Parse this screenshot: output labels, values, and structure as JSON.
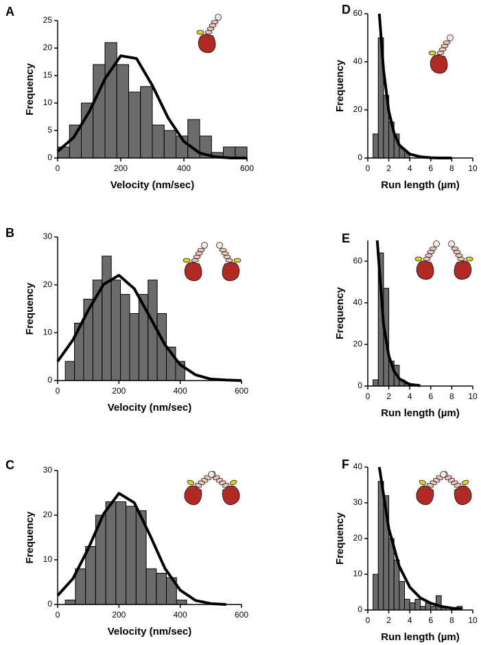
{
  "chart_data": [
    {
      "type": "histogram",
      "panel_label": "A",
      "xlabel": "Velocity (nm/sec)",
      "ylabel": "Frequency",
      "bins": [
        0,
        37.5,
        75,
        112.5,
        150,
        187.5,
        225,
        262.5,
        300,
        337.5,
        375,
        412.5,
        450,
        487.5,
        525,
        562.5,
        600
      ],
      "values": [
        2,
        6,
        10,
        17,
        21,
        17,
        12,
        13,
        6,
        5,
        4,
        7,
        4,
        1,
        2,
        2
      ],
      "fit": {
        "x": [
          0,
          50,
          100,
          150,
          200,
          250,
          300,
          350,
          400,
          450,
          500,
          550,
          600
        ],
        "values": [
          1.2,
          3.7,
          8.4,
          14.4,
          18.6,
          18.1,
          13.2,
          7.3,
          3.0,
          0.9,
          0.2,
          0.0,
          0.0
        ]
      },
      "xlim": [
        0,
        600
      ],
      "ylim": [
        0,
        25
      ],
      "xticks": [
        0,
        200,
        400,
        600
      ],
      "yticks": [
        0,
        5,
        10,
        15,
        20,
        25
      ],
      "color": "#6b6b6b",
      "fit_color": "#000000"
    },
    {
      "type": "histogram",
      "panel_label": "B",
      "xlabel": "Velocity (nm/sec)",
      "ylabel": "Frequency",
      "bins": [
        25,
        55,
        85,
        115,
        145,
        175,
        205,
        235,
        265,
        295,
        325,
        355,
        385,
        415
      ],
      "values": [
        4,
        12,
        17,
        21,
        26,
        21,
        18,
        14,
        18,
        21,
        14,
        7,
        4
      ],
      "fit": {
        "x": [
          0,
          50,
          100,
          150,
          200,
          250,
          300,
          350,
          400,
          450,
          500,
          550,
          600
        ],
        "values": [
          4.0,
          8.5,
          14.7,
          20.1,
          22.0,
          19.2,
          13.4,
          7.5,
          3.3,
          1.2,
          0.3,
          0.1,
          0.0
        ]
      },
      "xlim": [
        0,
        600
      ],
      "ylim": [
        0,
        30
      ],
      "xticks": [
        0,
        200,
        400,
        600
      ],
      "yticks": [
        0,
        10,
        20,
        30
      ],
      "color": "#6b6b6b",
      "fit_color": "#000000"
    },
    {
      "type": "histogram",
      "panel_label": "C",
      "xlabel": "Velocity (nm/sec)",
      "ylabel": "Frequency",
      "bins": [
        25,
        58,
        91,
        124,
        157,
        190,
        223,
        256,
        289,
        322,
        355,
        388,
        421
      ],
      "values": [
        1,
        8,
        13,
        20,
        23,
        23,
        22,
        21,
        8,
        7,
        6,
        1
      ],
      "fit": {
        "x": [
          0,
          50,
          100,
          150,
          200,
          250,
          300,
          350,
          400,
          450,
          500,
          550
        ],
        "values": [
          2.0,
          5.8,
          12.5,
          20.3,
          24.9,
          22.8,
          15.7,
          8.1,
          3.2,
          0.9,
          0.2,
          0.0
        ]
      },
      "xlim": [
        0,
        600
      ],
      "ylim": [
        0,
        30
      ],
      "xticks": [
        0,
        200,
        400,
        600
      ],
      "yticks": [
        0,
        10,
        20,
        30
      ],
      "color": "#6b6b6b",
      "fit_color": "#000000"
    },
    {
      "type": "histogram",
      "panel_label": "D",
      "xlabel": "Run length (µm)",
      "ylabel": "Frequency",
      "bins": [
        0.5,
        1,
        1.5,
        2,
        2.5,
        3,
        3.5,
        4
      ],
      "values": [
        10,
        50,
        26,
        15,
        10,
        4,
        2
      ],
      "fit": {
        "x": [
          1.1,
          1.5,
          2,
          2.5,
          3,
          4,
          5,
          6,
          7,
          8
        ],
        "values": [
          60,
          36.6,
          19.5,
          10.4,
          5.4,
          1.6,
          0.5,
          0.1,
          0,
          0
        ]
      },
      "xlim": [
        0,
        10
      ],
      "ylim": [
        0,
        60
      ],
      "xticks": [
        0,
        2,
        4,
        6,
        8,
        10
      ],
      "yticks": [
        0,
        20,
        40,
        60
      ],
      "color": "#6b6b6b",
      "fit_color": "#000000"
    },
    {
      "type": "histogram",
      "panel_label": "E",
      "xlabel": "Run length (µm)",
      "ylabel": "Frequency",
      "bins": [
        0.5,
        1,
        1.5,
        2,
        2.5,
        3,
        3.5,
        4
      ],
      "values": [
        3,
        64,
        47,
        12,
        10,
        3,
        1
      ],
      "fit": {
        "x": [
          0.9,
          1.5,
          2,
          2.5,
          3,
          4,
          5
        ],
        "values": [
          70,
          29.8,
          14.6,
          7.2,
          3.5,
          0.8,
          0.2
        ]
      },
      "xlim": [
        0,
        10
      ],
      "ylim": [
        0,
        70
      ],
      "xticks": [
        0,
        2,
        4,
        6,
        8,
        10
      ],
      "yticks": [
        0,
        20,
        40,
        60
      ],
      "color": "#6b6b6b",
      "fit_color": "#000000"
    },
    {
      "type": "histogram",
      "panel_label": "F",
      "xlabel": "Run length (µm)",
      "ylabel": "Frequency",
      "bins": [
        0.5,
        1,
        1.5,
        2,
        2.5,
        3,
        3.5,
        4,
        4.5,
        5,
        5.5,
        6,
        6.5,
        7,
        7.5,
        8,
        8.5,
        9
      ],
      "values": [
        10,
        36,
        32,
        20,
        14,
        8,
        3,
        2,
        3,
        1,
        2,
        1,
        4,
        1,
        0,
        0,
        1
      ],
      "fit": {
        "x": [
          1.1,
          2,
          3,
          4,
          5,
          6,
          7,
          8,
          9
        ],
        "values": [
          40,
          22.8,
          12.2,
          6.4,
          3.4,
          1.9,
          1.0,
          0.5,
          0.3
        ]
      },
      "xlim": [
        0,
        10
      ],
      "ylim": [
        0,
        40
      ],
      "xticks": [
        0,
        2,
        4,
        6,
        8,
        10
      ],
      "yticks": [
        0,
        10,
        20,
        30,
        40
      ],
      "color": "#6b6b6b",
      "fit_color": "#000000"
    }
  ]
}
